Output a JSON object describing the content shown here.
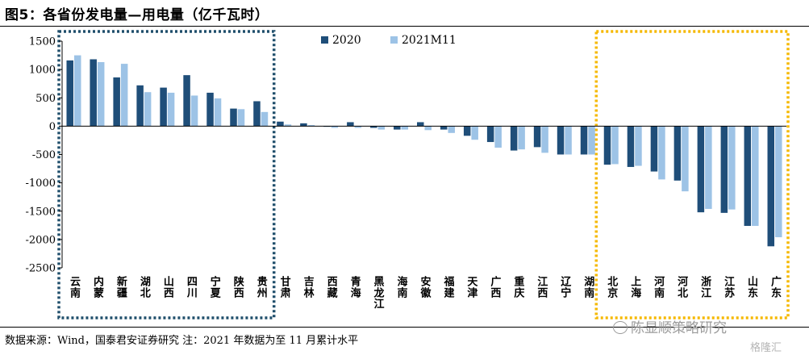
{
  "title": "图5：各省份发电量—用电量（亿千瓦时）",
  "source": "数据来源：Wind，国泰君安证券研究  注：2021 年数据为至 11 月累计水平",
  "watermark": "陈显顺策略研究",
  "watermark_corner": "格隆汇",
  "chart_data": {
    "type": "bar",
    "ylim": [
      -2500,
      1500
    ],
    "yticks": [
      "1500",
      "1000",
      "500",
      "0",
      "-500",
      "-1000",
      "-1500",
      "-2000",
      "-2500"
    ],
    "ytick_values": [
      1500,
      1000,
      500,
      0,
      -500,
      -1000,
      -1500,
      -2000,
      -2500
    ],
    "categories": [
      "云南",
      "内蒙",
      "新疆",
      "湖北",
      "山西",
      "四川",
      "宁夏",
      "陕西",
      "贵州",
      "甘肃",
      "吉林",
      "西藏",
      "青海",
      "黑龙江",
      "海南",
      "安徽",
      "福建",
      "天津",
      "广西",
      "重庆",
      "江西",
      "辽宁",
      "湖南",
      "北京",
      "上海",
      "河南",
      "河北",
      "浙江",
      "江苏",
      "山东",
      "广东"
    ],
    "series": [
      {
        "name": "2020",
        "color": "#1f4e79",
        "values": [
          1160,
          1180,
          860,
          720,
          680,
          900,
          590,
          310,
          440,
          80,
          50,
          -10,
          70,
          -30,
          -60,
          70,
          -60,
          -170,
          -280,
          -430,
          -370,
          -500,
          -500,
          -680,
          -720,
          -800,
          -960,
          -1520,
          -1530,
          -1760,
          -2120
        ]
      },
      {
        "name": "2021M11",
        "color": "#9dc3e6",
        "values": [
          1250,
          1130,
          1100,
          600,
          590,
          540,
          490,
          300,
          250,
          30,
          20,
          -30,
          -30,
          -60,
          -60,
          -70,
          -120,
          -240,
          -380,
          -410,
          -470,
          -500,
          -500,
          -670,
          -700,
          -940,
          -1150,
          -1460,
          -1470,
          -1760,
          -1960
        ]
      }
    ],
    "legend": {
      "position": "top-center",
      "entries": [
        "2020",
        "2021M11"
      ]
    },
    "highlight_boxes": [
      {
        "style": "dotted",
        "color": "#1f4e6b",
        "from": "云南",
        "to": "贵州"
      },
      {
        "style": "dotted",
        "color": "#f5b800",
        "from": "北京",
        "to": "广东"
      }
    ],
    "grid": false
  }
}
